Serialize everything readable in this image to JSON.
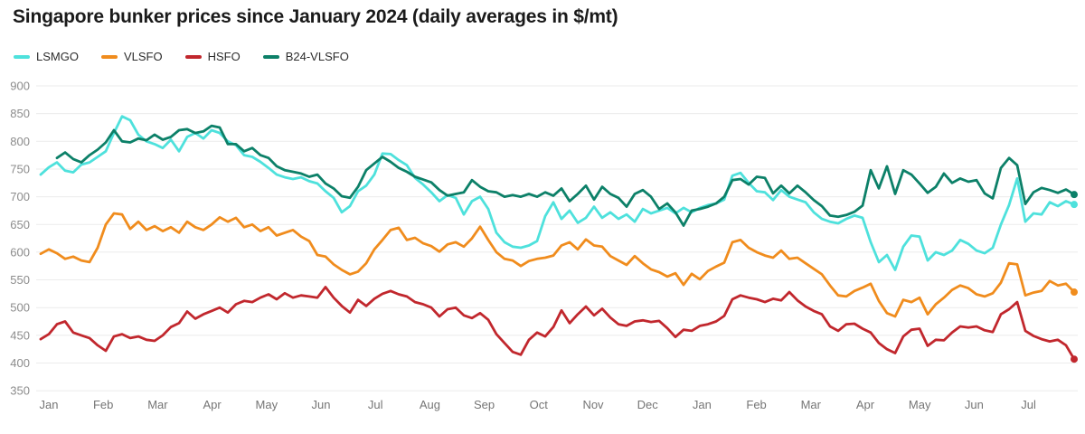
{
  "title": "Singapore bunker prices since January 2024 (daily averages in $/mt)",
  "chart_data": {
    "type": "line",
    "title": "Singapore bunker prices since January 2024 (daily averages in $/mt)",
    "unit": "$/mt",
    "grid": "horizontal",
    "legend_position": "top-left",
    "x_axis": {
      "start": "Jan 2024",
      "end": "Jul 2025",
      "tick_labels": [
        "Jan",
        "Feb",
        "Mar",
        "Apr",
        "May",
        "Jun",
        "Jul",
        "Aug",
        "Sep",
        "Oct",
        "Nov",
        "Dec",
        "Jan",
        "Feb",
        "Mar",
        "Apr",
        "May",
        "Jun",
        "Jul"
      ]
    },
    "y_axis": {
      "min": 350,
      "max": 900,
      "step": 50,
      "tick_labels": [
        "350",
        "400",
        "450",
        "500",
        "550",
        "600",
        "650",
        "700",
        "750",
        "800",
        "850",
        "900"
      ]
    },
    "series": [
      {
        "name": "LSMGO",
        "color": "#4EE1DC",
        "values": [
          740,
          753,
          762,
          747,
          744,
          758,
          762,
          772,
          782,
          815,
          845,
          838,
          812,
          800,
          795,
          788,
          803,
          782,
          808,
          815,
          805,
          820,
          815,
          800,
          793,
          775,
          772,
          763,
          752,
          740,
          735,
          732,
          735,
          728,
          724,
          710,
          698,
          672,
          683,
          710,
          720,
          740,
          778,
          777,
          766,
          757,
          734,
          722,
          708,
          692,
          703,
          698,
          668,
          692,
          700,
          678,
          635,
          618,
          610,
          608,
          612,
          620,
          665,
          690,
          660,
          675,
          653,
          662,
          682,
          662,
          672,
          660,
          668,
          655,
          678,
          670,
          675,
          680,
          670,
          680,
          672,
          680,
          685,
          688,
          695,
          738,
          743,
          725,
          710,
          708,
          694,
          712,
          700,
          695,
          690,
          672,
          660,
          655,
          652,
          660,
          666,
          662,
          618,
          582,
          595,
          568,
          610,
          630,
          628,
          585,
          600,
          595,
          603,
          622,
          615,
          603,
          598,
          608,
          650,
          685,
          733,
          655,
          670,
          668,
          690,
          683,
          692,
          686
        ]
      },
      {
        "name": "VLSFO",
        "color": "#F08C1D",
        "values": [
          597,
          605,
          598,
          588,
          592,
          585,
          582,
          608,
          650,
          670,
          668,
          642,
          655,
          640,
          647,
          638,
          645,
          635,
          655,
          645,
          640,
          650,
          663,
          655,
          662,
          645,
          650,
          638,
          645,
          630,
          635,
          640,
          628,
          620,
          595,
          592,
          578,
          568,
          560,
          565,
          580,
          605,
          622,
          640,
          644,
          622,
          626,
          616,
          611,
          601,
          614,
          618,
          610,
          625,
          646,
          622,
          600,
          588,
          585,
          575,
          584,
          588,
          590,
          594,
          612,
          618,
          605,
          623,
          612,
          610,
          593,
          585,
          577,
          593,
          580,
          569,
          564,
          556,
          562,
          541,
          561,
          551,
          566,
          574,
          581,
          618,
          622,
          608,
          600,
          594,
          590,
          603,
          588,
          590,
          580,
          570,
          560,
          540,
          522,
          520,
          530,
          536,
          543,
          512,
          490,
          484,
          514,
          510,
          518,
          488,
          506,
          518,
          532,
          540,
          535,
          524,
          520,
          526,
          545,
          580,
          578,
          522,
          527,
          530,
          548,
          540,
          543,
          528
        ]
      },
      {
        "name": "HSFO",
        "color": "#C1272D",
        "values": [
          443,
          452,
          470,
          475,
          455,
          450,
          445,
          432,
          422,
          448,
          452,
          445,
          448,
          442,
          440,
          450,
          465,
          472,
          493,
          480,
          488,
          494,
          500,
          491,
          506,
          512,
          510,
          518,
          524,
          515,
          526,
          518,
          522,
          520,
          518,
          537,
          518,
          503,
          491,
          514,
          503,
          516,
          525,
          530,
          524,
          520,
          510,
          506,
          500,
          484,
          497,
          500,
          486,
          481,
          490,
          478,
          452,
          436,
          420,
          415,
          442,
          455,
          448,
          465,
          495,
          472,
          488,
          502,
          486,
          498,
          482,
          470,
          467,
          475,
          477,
          474,
          476,
          463,
          447,
          460,
          458,
          467,
          470,
          475,
          485,
          515,
          522,
          518,
          515,
          510,
          516,
          513,
          528,
          513,
          502,
          494,
          488,
          466,
          458,
          470,
          471,
          462,
          455,
          436,
          425,
          418,
          448,
          460,
          462,
          431,
          442,
          441,
          455,
          466,
          464,
          466,
          459,
          456,
          488,
          497,
          510,
          458,
          449,
          443,
          439,
          442,
          432,
          407
        ]
      },
      {
        "name": "B24-VLSFO",
        "color": "#0C8068",
        "values": [
          null,
          null,
          770,
          780,
          768,
          762,
          775,
          785,
          798,
          820,
          800,
          798,
          805,
          802,
          812,
          803,
          808,
          820,
          822,
          815,
          818,
          828,
          825,
          795,
          795,
          782,
          788,
          775,
          770,
          755,
          748,
          745,
          742,
          736,
          740,
          724,
          715,
          701,
          698,
          718,
          748,
          760,
          772,
          763,
          752,
          745,
          736,
          731,
          726,
          712,
          702,
          705,
          708,
          730,
          718,
          710,
          708,
          700,
          703,
          700,
          705,
          700,
          708,
          702,
          715,
          692,
          705,
          720,
          695,
          718,
          705,
          698,
          682,
          705,
          712,
          700,
          678,
          688,
          672,
          648,
          675,
          678,
          682,
          688,
          700,
          730,
          732,
          722,
          736,
          734,
          706,
          720,
          706,
          720,
          708,
          694,
          683,
          666,
          664,
          667,
          673,
          684,
          748,
          715,
          755,
          705,
          748,
          740,
          724,
          707,
          718,
          742,
          725,
          733,
          727,
          730,
          706,
          697,
          752,
          770,
          757,
          687,
          708,
          716,
          712,
          707,
          713,
          704
        ]
      }
    ]
  }
}
